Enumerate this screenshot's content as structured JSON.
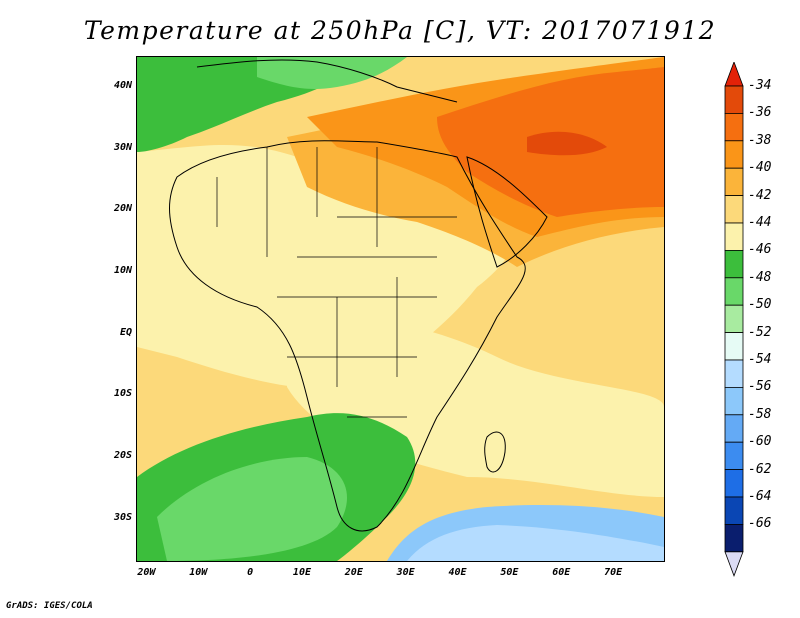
{
  "title": "Temperature at 250hPa [C], VT: 2017071912",
  "footer": "GrADS: IGES/COLA",
  "axes": {
    "lat_labels": [
      {
        "text": "40N",
        "value": 40
      },
      {
        "text": "30N",
        "value": 30
      },
      {
        "text": "20N",
        "value": 20
      },
      {
        "text": "10N",
        "value": 10
      },
      {
        "text": "EQ",
        "value": 0
      },
      {
        "text": "10S",
        "value": -10
      },
      {
        "text": "20S",
        "value": -20
      },
      {
        "text": "30S",
        "value": -30
      }
    ],
    "lon_labels": [
      {
        "text": "20W",
        "value": -20
      },
      {
        "text": "10W",
        "value": -10
      },
      {
        "text": "0",
        "value": 0
      },
      {
        "text": "10E",
        "value": 10
      },
      {
        "text": "20E",
        "value": 20
      },
      {
        "text": "30E",
        "value": 30
      },
      {
        "text": "40E",
        "value": 40
      },
      {
        "text": "50E",
        "value": 50
      },
      {
        "text": "60E",
        "value": 60
      },
      {
        "text": "70E",
        "value": 70
      }
    ],
    "lon_range": [
      -22,
      80
    ],
    "lat_range": [
      -37,
      45
    ]
  },
  "colorbar": {
    "labels": [
      "-34",
      "-36",
      "-38",
      "-40",
      "-42",
      "-44",
      "-46",
      "-48",
      "-50",
      "-52",
      "-54",
      "-56",
      "-58",
      "-60",
      "-62",
      "-64",
      "-66"
    ],
    "colors": [
      "#e34a0a",
      "#f56f10",
      "#fa9518",
      "#fbb43a",
      "#fcd97a",
      "#fcf2ac",
      "#3cbe3c",
      "#69d869",
      "#a8eba0",
      "#e6fbf5",
      "#b4dcff",
      "#8cc8fa",
      "#64aaf5",
      "#3c8cf0",
      "#1e6ee6",
      "#0a46b4",
      "#0a1e6e"
    ],
    "arrow_top_color": "#e32208",
    "arrow_bottom_color": "#dcdcf5"
  }
}
